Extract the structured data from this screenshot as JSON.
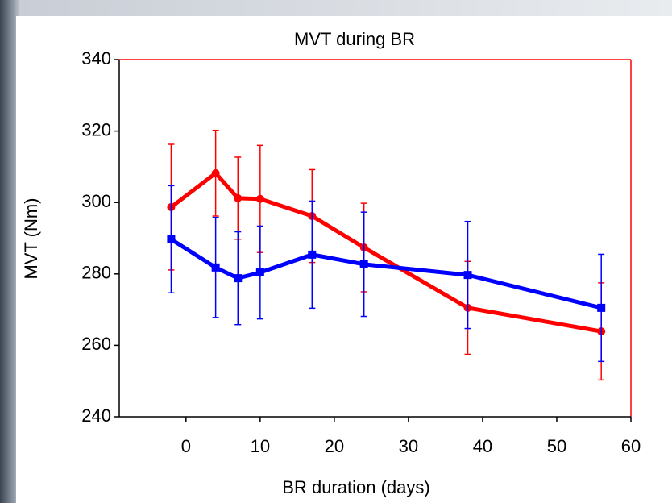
{
  "chart_data": {
    "type": "line",
    "title": "MVT during BR",
    "x_label": "BR duration (days)",
    "y_label": "MVT (Nm)",
    "x": [
      -2,
      4,
      7,
      10,
      17,
      24,
      38,
      56
    ],
    "series": [
      {
        "color": "#ff0000",
        "values": [
          298.7,
          308.2,
          301.2,
          301,
          296.2,
          287.4,
          270.5,
          263.9
        ],
        "errors": [
          17.6,
          12,
          11.5,
          15,
          13,
          12.4,
          13,
          13.6
        ]
      },
      {
        "color": "#0000ff",
        "values": [
          289.7,
          281.8,
          278.8,
          280.4,
          285.4,
          282.7,
          279.7,
          270.5
        ],
        "errors": [
          15,
          14,
          13,
          13,
          15,
          14.6,
          15,
          15
        ]
      }
    ],
    "xlim": [
      -9,
      60
    ],
    "xticks": [
      0,
      10,
      20,
      30,
      40,
      50,
      60
    ],
    "ylim": [
      240,
      340
    ],
    "yticks": [
      240,
      260,
      280,
      300,
      320,
      340
    ],
    "frame_color": "#ff0000"
  }
}
